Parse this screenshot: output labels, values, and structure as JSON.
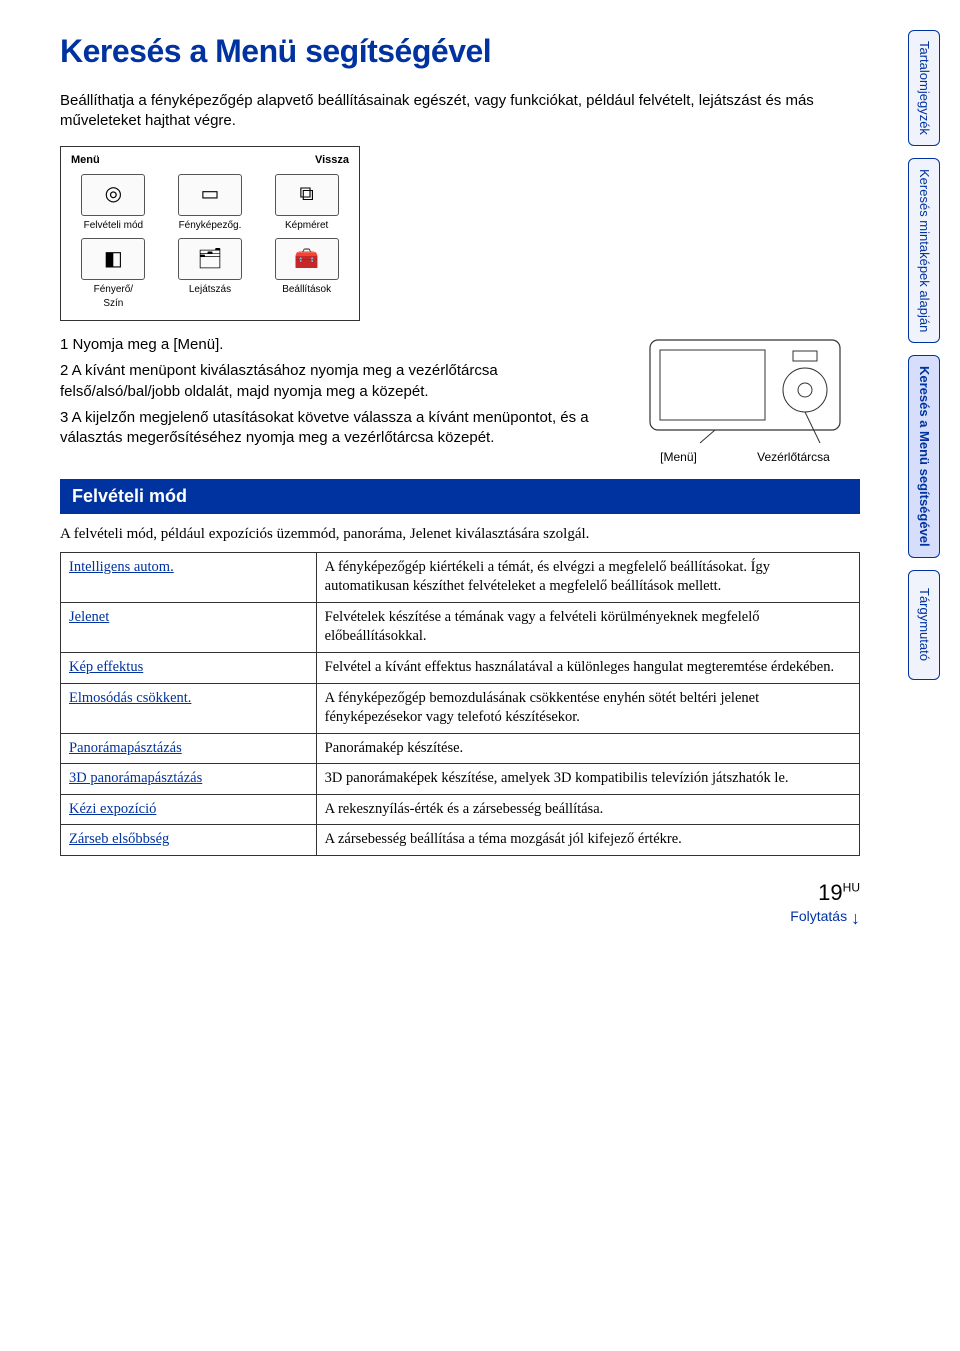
{
  "title": "Keresés a Menü segítségével",
  "intro": "Beállíthatja a fényképezőgép alapvető beállításainak egészét, vagy funkciókat, például felvételt, lejátszást és más műveleteket hajthat végre.",
  "menu_panel": {
    "top_left": "Menü",
    "top_right": "Vissza",
    "cells": [
      {
        "label": "Felvételi mód",
        "glyph": "◎"
      },
      {
        "label": "Fényképezőg.",
        "glyph": "▭"
      },
      {
        "label": "Képméret",
        "glyph": "⧉"
      },
      {
        "label": "Fényerő/\nSzín",
        "glyph": "◧"
      },
      {
        "label": "Lejátszás",
        "glyph": "🗂"
      },
      {
        "label": "Beállítások",
        "glyph": "🧰"
      }
    ]
  },
  "steps": {
    "s1": "1 Nyomja meg a [Menü].",
    "s2": "2 A kívánt menüpont kiválasztásához nyomja meg a vezérlőtárcsa felső/alsó/bal/jobb oldalát, majd nyomja meg a közepét.",
    "s3": "3 A kijelzőn megjelenő utasításokat követve válassza a kívánt menüpontot, és a választás megerősítéséhez nyomja meg a vezérlőtárcsa közepét."
  },
  "cam_labels": {
    "menu": "[Menü]",
    "wheel": "Vezérlőtárcsa"
  },
  "section": {
    "heading": "Felvételi mód",
    "intro": "A felvételi mód, például expozíciós üzemmód, panoráma, Jelenet kiválasztására szolgál.",
    "rows": [
      {
        "name": "Intelligens autom.",
        "desc": "A fényképezőgép kiértékeli a témát, és elvégzi a megfelelő beállításokat. Így automatikusan készíthet felvételeket a megfelelő beállítások mellett."
      },
      {
        "name": "Jelenet",
        "desc": "Felvételek készítése a témának vagy a felvételi körülményeknek megfelelő előbeállításokkal."
      },
      {
        "name": "Kép effektus",
        "desc": "Felvétel a kívánt effektus használatával a különleges hangulat megteremtése érdekében."
      },
      {
        "name": "Elmosódás csökkent.",
        "desc": "A fényképezőgép bemozdulásának csökkentése enyhén sötét beltéri jelenet fényképezésekor vagy telefotó készítésekor."
      },
      {
        "name": "Panorámapásztázás",
        "desc": "Panorámakép készítése."
      },
      {
        "name": "3D panorámapásztázás",
        "desc": "3D panorámaképek készítése, amelyek 3D kompatibilis televízión játszhatók le."
      },
      {
        "name": "Kézi expozíció",
        "desc": "A rekesznyílás-érték és a zársebesség beállítása."
      },
      {
        "name": "Zárseb elsőbbség",
        "desc": "A zársebesség beállítása a téma mozgását jól kifejező értékre."
      }
    ]
  },
  "sidetabs": [
    "Tartalomjegyzék",
    "Keresés mintaképek alapján",
    "Keresés a Menü segítségével",
    "Tárgymutató"
  ],
  "page_num": "19",
  "page_suffix": "HU",
  "continue": "Folytatás"
}
